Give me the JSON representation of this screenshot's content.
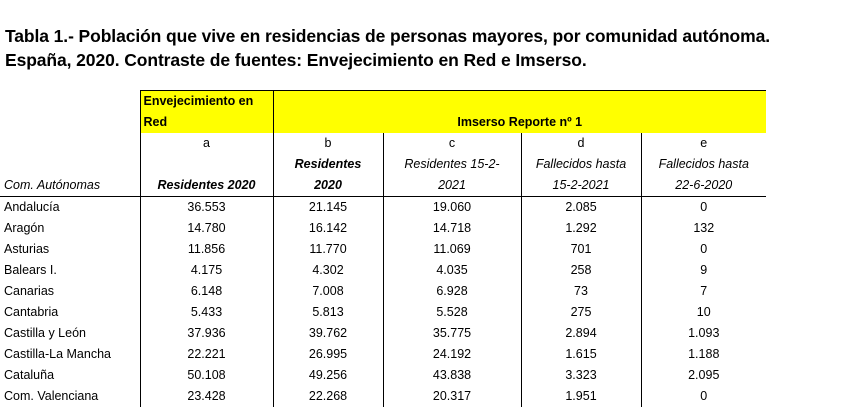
{
  "title": {
    "line1": "Tabla 1.- Población que vive en residencias de personas mayores, por comunidad autónoma.",
    "line2": "España, 2020. Contraste de fuentes: Envejecimiento en Red e Imserso."
  },
  "headers": {
    "group_red_line1": "Envejecimiento en",
    "group_red_line2": "Red",
    "group_imserso": "Imserso Reporte nº 1",
    "col0": "Com. Autónomas",
    "letters": [
      "a",
      "b",
      "c",
      "d",
      "e"
    ],
    "col_a": "Residentes 2020",
    "col_b_line1": "Residentes",
    "col_b_line2": "2020",
    "col_c_line1": "Residentes 15-2-",
    "col_c_line2": "2021",
    "col_d_line1": "Fallecidos hasta",
    "col_d_line2": "15-2-2021",
    "col_e_line1": "Fallecidos hasta",
    "col_e_line2": "22-6-2020"
  },
  "rows": [
    {
      "region": "Andalucía",
      "a": "36.553",
      "b": "21.145",
      "c": "19.060",
      "d": "2.085",
      "e": "0"
    },
    {
      "region": "Aragón",
      "a": "14.780",
      "b": "16.142",
      "c": "14.718",
      "d": "1.292",
      "e": "132"
    },
    {
      "region": "Asturias",
      "a": "11.856",
      "b": "11.770",
      "c": "11.069",
      "d": "701",
      "e": "0"
    },
    {
      "region": "Balears I.",
      "a": "4.175",
      "b": "4.302",
      "c": "4.035",
      "d": "258",
      "e": "9"
    },
    {
      "region": "Canarias",
      "a": "6.148",
      "b": "7.008",
      "c": "6.928",
      "d": "73",
      "e": "7"
    },
    {
      "region": "Cantabria",
      "a": "5.433",
      "b": "5.813",
      "c": "5.528",
      "d": "275",
      "e": "10"
    },
    {
      "region": "Castilla y León",
      "a": "37.936",
      "b": "39.762",
      "c": "35.775",
      "d": "2.894",
      "e": "1.093"
    },
    {
      "region": "Castilla-La Mancha",
      "a": "22.221",
      "b": "26.995",
      "c": "24.192",
      "d": "1.615",
      "e": "1.188"
    },
    {
      "region": "Cataluña",
      "a": "50.108",
      "b": "49.256",
      "c": "43.838",
      "d": "3.323",
      "e": "2.095"
    },
    {
      "region": "Com. Valenciana",
      "a": "23.428",
      "b": "22.268",
      "c": "20.317",
      "d": "1.951",
      "e": "0"
    }
  ],
  "colors": {
    "highlight": "#ffff00"
  }
}
